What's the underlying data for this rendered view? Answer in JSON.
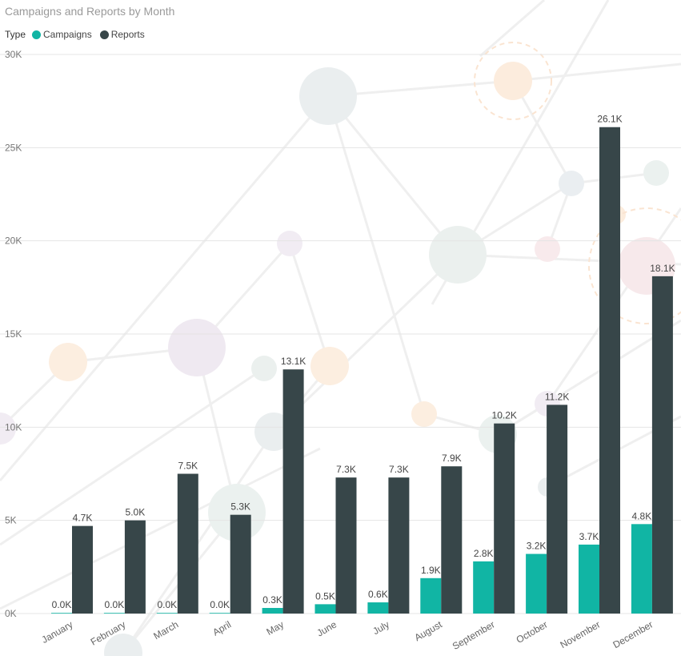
{
  "chart_data": {
    "type": "bar",
    "title": "Campaigns and Reports by Month",
    "legend_title": "Type",
    "legend_position": "top-left",
    "categories": [
      "January",
      "February",
      "March",
      "April",
      "May",
      "June",
      "July",
      "August",
      "September",
      "October",
      "November",
      "December"
    ],
    "series": [
      {
        "name": "Campaigns",
        "color": "#11b5a4",
        "values": [
          0,
          0,
          0,
          30,
          300,
          500,
          600,
          1900,
          2800,
          3200,
          3700,
          4800
        ],
        "labels": [
          "0.0K",
          "0.0K",
          "0.0K",
          "0.0K",
          "0.3K",
          "0.5K",
          "0.6K",
          "1.9K",
          "2.8K",
          "3.2K",
          "3.7K",
          "4.8K"
        ]
      },
      {
        "name": "Reports",
        "color": "#374649",
        "values": [
          4700,
          5000,
          7500,
          5300,
          13100,
          7300,
          7300,
          7900,
          10200,
          11200,
          26100,
          18100
        ],
        "labels": [
          "4.7K",
          "5.0K",
          "7.5K",
          "5.3K",
          "13.1K",
          "7.3K",
          "7.3K",
          "7.9K",
          "10.2K",
          "11.2K",
          "26.1K",
          "18.1K"
        ]
      }
    ],
    "ylim": [
      0,
      30000
    ],
    "yticks": [
      0,
      5000,
      10000,
      15000,
      20000,
      25000,
      30000
    ],
    "ytick_labels": [
      "0K",
      "5K",
      "10K",
      "15K",
      "20K",
      "25K",
      "30K"
    ],
    "grid": true
  }
}
